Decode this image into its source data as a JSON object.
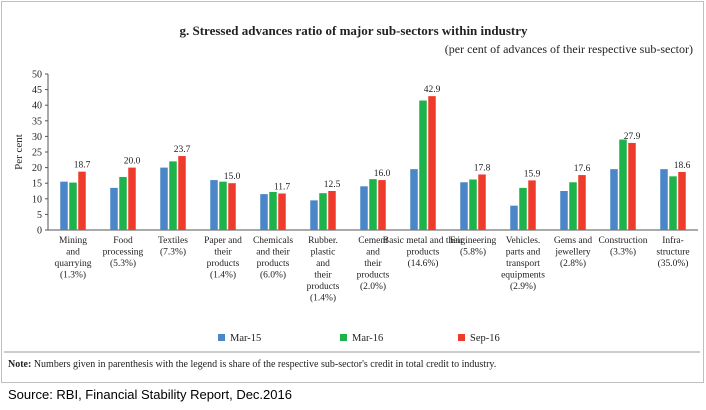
{
  "chart_data": {
    "type": "bar",
    "title": "g. Stressed advances ratio of major sub-sectors within industry",
    "subtitle": "(per cent of advances of their respective sub-sector)",
    "ylabel": "Per cent",
    "ylim": [
      0,
      50
    ],
    "yticks": [
      0,
      5,
      10,
      15,
      20,
      25,
      30,
      35,
      40,
      45,
      50
    ],
    "grid": false,
    "legend_position": "bottom",
    "categories": [
      [
        "Mining",
        "and",
        "quarrying",
        "(1.3%)"
      ],
      [
        "Food",
        "processing",
        "(5.3%)"
      ],
      [
        "Textiles",
        "(7.3%)"
      ],
      [
        "Paper and",
        "their",
        "products",
        "(1.4%)"
      ],
      [
        "Chemicals",
        "and their",
        "products",
        "(6.0%)"
      ],
      [
        "Rubber.",
        "plastic",
        "and",
        "their",
        "products",
        "(1.4%)"
      ],
      [
        "Cement",
        "and",
        "their",
        "products",
        "(2.0%)"
      ],
      [
        "Basic metal and their",
        "products",
        "(14.6%)"
      ],
      [
        "Engineering",
        "(5.8%)"
      ],
      [
        "Vehicles.",
        "parts and",
        "transport",
        "equipments",
        "(2.9%)"
      ],
      [
        "Gems and",
        "jewellery",
        "(2.8%)"
      ],
      [
        "Construction",
        "(3.3%)"
      ],
      [
        "Infra-",
        "structure",
        "(35.0%)"
      ]
    ],
    "series": [
      {
        "name": "Mar-15",
        "color": "#4a86c8",
        "values": [
          15.5,
          13.5,
          20.0,
          16.0,
          11.5,
          9.5,
          14.0,
          19.5,
          15.3,
          7.8,
          12.5,
          19.5,
          19.5
        ]
      },
      {
        "name": "Mar-16",
        "color": "#1db34a",
        "values": [
          15.2,
          17.0,
          22.0,
          15.5,
          12.2,
          11.8,
          16.3,
          41.5,
          16.2,
          13.5,
          15.3,
          29.0,
          17.2
        ]
      },
      {
        "name": "Sep-16",
        "color": "#ee3b2c",
        "values": [
          18.7,
          20.0,
          23.7,
          15.0,
          11.7,
          12.5,
          16.0,
          42.9,
          17.8,
          15.9,
          17.6,
          27.9,
          18.6
        ]
      }
    ],
    "data_labels": [
      "18.7",
      "20.0",
      "23.7",
      "15.0",
      "11.7",
      "12.5",
      "16.0",
      "42.9",
      "17.8",
      "15.9",
      "17.6",
      "27.9",
      "18.6"
    ]
  },
  "note": {
    "prefix": "Note:",
    "text": " Numbers given in parenthesis with the legend is share of the respective sub-sector's credit in total credit to industry."
  },
  "source": "Source: RBI, Financial Stability Report, Dec.2016"
}
